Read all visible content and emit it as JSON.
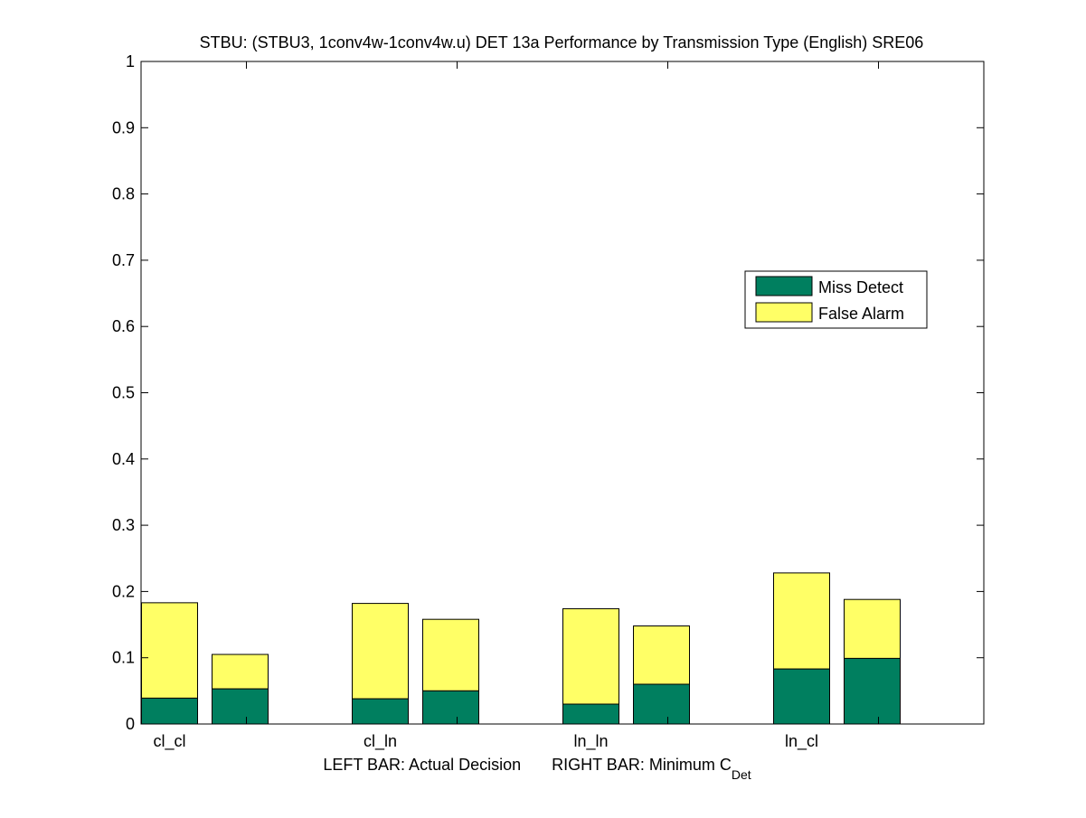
{
  "chart_data": {
    "type": "bar",
    "title": "STBU: (STBU3, 1conv4w-1conv4w.u) DET 13a Performance by Transmission Type (English) SRE06",
    "xlabel": {
      "left": "LEFT BAR: Actual Decision",
      "right_prefix": "RIGHT BAR: Minimum C",
      "right_subscript": "Det"
    },
    "ylabel": "",
    "ylim": [
      0,
      1
    ],
    "yticks": [
      0,
      0.1,
      0.2,
      0.3,
      0.4,
      0.5,
      0.6,
      0.7,
      0.8,
      0.9,
      1
    ],
    "ytick_labels": [
      "0",
      "0.1",
      "0.2",
      "0.3",
      "0.4",
      "0.5",
      "0.6",
      "0.7",
      "0.8",
      "0.9",
      "1"
    ],
    "categories": [
      "cl_cl",
      "cl_ln",
      "ln_ln",
      "ln_cl"
    ],
    "bars_per_category": [
      "LEFT BAR: Actual Decision",
      "RIGHT BAR: Minimum C_Det"
    ],
    "stacked": true,
    "series": [
      {
        "name": "Miss Detect",
        "color": "#007f5f",
        "actual_decision": [
          0.039,
          0.038,
          0.03,
          0.083
        ],
        "minimum_cdet": [
          0.053,
          0.05,
          0.06,
          0.099
        ]
      },
      {
        "name": "False Alarm",
        "color": "#ffff66",
        "actual_decision": [
          0.144,
          0.144,
          0.144,
          0.145
        ],
        "minimum_cdet": [
          0.052,
          0.108,
          0.088,
          0.089
        ]
      }
    ],
    "legend": {
      "placement": "right, middle of plot",
      "entries": [
        "Miss Detect",
        "False Alarm"
      ]
    },
    "grid": false,
    "box": true
  }
}
